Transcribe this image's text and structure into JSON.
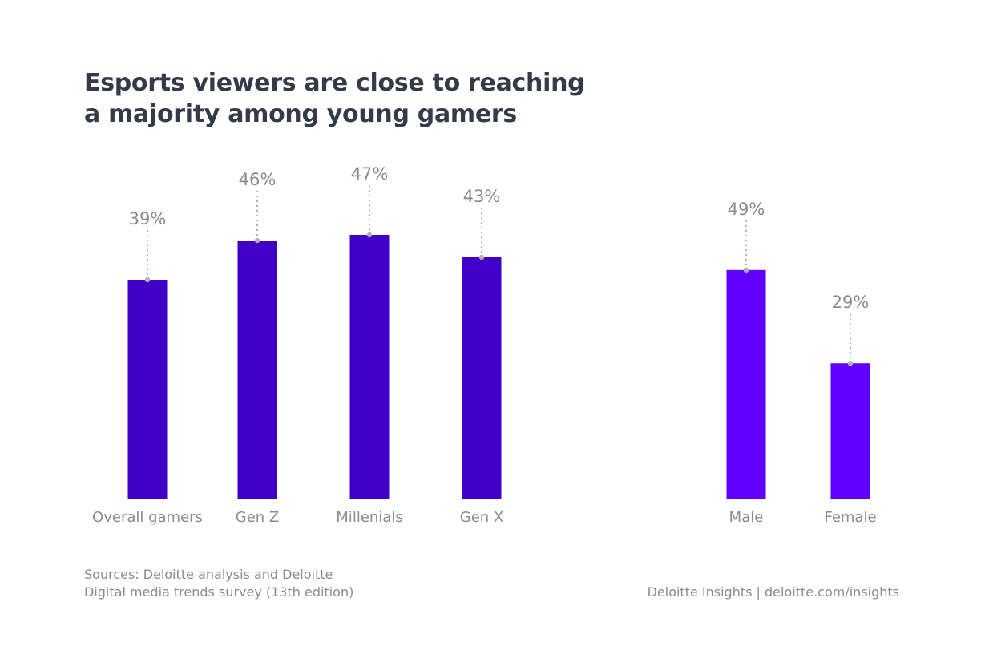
{
  "title_lines": [
    "Esports viewers are close to reaching",
    "a majority among young gamers"
  ],
  "chart_data": [
    {
      "type": "bar",
      "categories": [
        "Overall gamers",
        "Gen Z",
        "Millenials",
        "Gen X"
      ],
      "values": [
        39,
        46,
        47,
        43
      ],
      "value_labels": [
        "39%",
        "46%",
        "47%",
        "43%"
      ],
      "color": "#4000c8",
      "unit": "%"
    },
    {
      "type": "bar",
      "categories": [
        "Male",
        "Female"
      ],
      "values": [
        49,
        29
      ],
      "value_labels": [
        "49%",
        "29%"
      ],
      "color": "#6200ff",
      "unit": "%"
    }
  ],
  "sources": [
    "Sources: Deloitte analysis and Deloitte",
    "Digital media trends survey (13th edition)"
  ],
  "credit": "Deloitte Insights | deloitte.com/insights",
  "colors": {
    "label": "#8a8a93",
    "axis": "#d8d8e0",
    "title": "#333a48"
  }
}
